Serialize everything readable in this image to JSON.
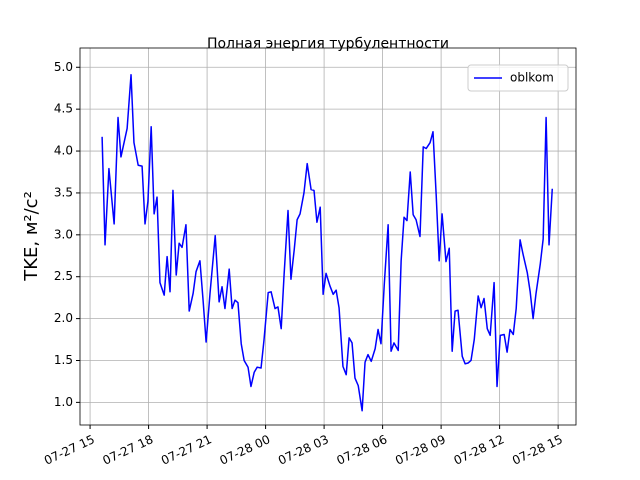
{
  "chart_data": {
    "type": "line",
    "title": "Полная энергия турбулентности",
    "y_label": "TKE, м²/с²",
    "x": [
      "07-27 15:37",
      "07-27 15:46",
      "07-27 15:58",
      "07-27 16:14",
      "07-27 16:26",
      "07-27 16:35",
      "07-27 16:54",
      "07-27 17:06",
      "07-27 17:15",
      "07-27 17:28",
      "07-27 17:40",
      "07-27 17:49",
      "07-27 17:58",
      "07-27 18:08",
      "07-27 18:17",
      "07-27 18:26",
      "07-27 18:35",
      "07-27 18:48",
      "07-27 18:57",
      "07-27 19:06",
      "07-27 19:15",
      "07-27 19:25",
      "07-27 19:34",
      "07-27 19:43",
      "07-27 19:55",
      "07-27 20:05",
      "07-27 20:17",
      "07-27 20:26",
      "07-27 20:38",
      "07-27 20:48",
      "07-27 20:57",
      "07-27 21:09",
      "07-27 21:25",
      "07-27 21:37",
      "07-27 21:46",
      "07-27 21:55",
      "07-27 22:08",
      "07-27 22:17",
      "07-27 22:26",
      "07-27 22:35",
      "07-27 22:45",
      "07-27 22:54",
      "07-27 23:06",
      "07-27 23:15",
      "07-27 23:25",
      "07-27 23:34",
      "07-27 23:46",
      "07-27 23:55",
      "07-28 00:08",
      "07-28 00:17",
      "07-28 00:29",
      "07-28 00:38",
      "07-28 00:48",
      "07-28 00:57",
      "07-28 01:09",
      "07-28 01:18",
      "07-28 01:28",
      "07-28 01:37",
      "07-28 01:46",
      "07-28 01:58",
      "07-28 02:08",
      "07-28 02:20",
      "07-28 02:29",
      "07-28 02:38",
      "07-28 02:48",
      "07-28 02:57",
      "07-28 03:06",
      "07-28 03:18",
      "07-28 03:28",
      "07-28 03:37",
      "07-28 03:46",
      "07-28 03:58",
      "07-28 04:08",
      "07-28 04:17",
      "07-28 04:26",
      "07-28 04:35",
      "07-28 04:45",
      "07-28 04:57",
      "07-28 05:06",
      "07-28 05:15",
      "07-28 05:25",
      "07-28 05:37",
      "07-28 05:46",
      "07-28 05:55",
      "07-28 06:05",
      "07-28 06:17",
      "07-28 06:26",
      "07-28 06:35",
      "07-28 06:48",
      "07-28 06:57",
      "07-28 07:06",
      "07-28 07:15",
      "07-28 07:25",
      "07-28 07:34",
      "07-28 07:43",
      "07-28 07:55",
      "07-28 08:05",
      "07-28 08:14",
      "07-28 08:26",
      "07-28 08:35",
      "07-28 08:45",
      "07-28 08:54",
      "07-28 09:03",
      "07-28 09:15",
      "07-28 09:25",
      "07-28 09:34",
      "07-28 09:43",
      "07-28 09:52",
      "07-28 10:05",
      "07-28 10:14",
      "07-28 10:23",
      "07-28 10:32",
      "07-28 10:42",
      "07-28 10:54",
      "07-28 11:03",
      "07-28 11:12",
      "07-28 11:22",
      "07-28 11:31",
      "07-28 11:43",
      "07-28 11:52",
      "07-28 12:02",
      "07-28 12:14",
      "07-28 12:23",
      "07-28 12:32",
      "07-28 12:42",
      "07-28 12:51",
      "07-28 13:03",
      "07-28 13:12",
      "07-28 13:25",
      "07-28 13:34",
      "07-28 13:43",
      "07-28 13:52",
      "07-28 14:05",
      "07-28 14:14",
      "07-28 14:23",
      "07-28 14:32",
      "07-28 14:42"
    ],
    "series": [
      {
        "name": "oblkom",
        "color": "#0000ff",
        "values": [
          4.17,
          2.88,
          3.79,
          3.13,
          4.4,
          3.93,
          4.27,
          4.91,
          4.1,
          3.83,
          3.82,
          3.13,
          3.4,
          4.29,
          3.25,
          3.45,
          2.43,
          2.28,
          2.74,
          2.32,
          3.53,
          2.52,
          2.9,
          2.85,
          3.12,
          2.09,
          2.3,
          2.56,
          2.69,
          2.2,
          1.72,
          2.3,
          2.99,
          2.2,
          2.38,
          2.12,
          2.59,
          2.12,
          2.22,
          2.19,
          1.7,
          1.5,
          1.42,
          1.19,
          1.36,
          1.42,
          1.41,
          1.74,
          2.31,
          2.32,
          2.12,
          2.14,
          1.88,
          2.53,
          3.29,
          2.47,
          2.82,
          3.18,
          3.25,
          3.5,
          3.85,
          3.54,
          3.53,
          3.15,
          3.33,
          2.29,
          2.54,
          2.39,
          2.29,
          2.34,
          2.13,
          1.43,
          1.33,
          1.77,
          1.71,
          1.29,
          1.2,
          0.9,
          1.48,
          1.57,
          1.49,
          1.64,
          1.87,
          1.7,
          2.4,
          3.12,
          1.61,
          1.71,
          1.62,
          2.69,
          3.21,
          3.17,
          3.75,
          3.24,
          3.18,
          2.98,
          4.05,
          4.03,
          4.1,
          4.23,
          3.46,
          2.69,
          3.25,
          2.68,
          2.84,
          1.61,
          2.09,
          2.1,
          1.55,
          1.46,
          1.47,
          1.5,
          1.75,
          2.27,
          2.13,
          2.24,
          1.88,
          1.8,
          2.43,
          1.19,
          1.8,
          1.81,
          1.6,
          1.87,
          1.81,
          2.12,
          2.94,
          2.77,
          2.55,
          2.32,
          2.0,
          2.3,
          2.65,
          2.95,
          4.4,
          2.88,
          3.55
        ]
      }
    ],
    "xlim": [
      "07-27 14:29",
      "07-28 15:55"
    ],
    "xticks": [
      "07-27 15",
      "07-27 18",
      "07-27 21",
      "07-28 00",
      "07-28 03",
      "07-28 06",
      "07-28 09",
      "07-28 12",
      "07-28 15"
    ],
    "ylim": [
      0.73,
      5.23
    ],
    "yticks": [
      1.0,
      1.5,
      2.0,
      2.5,
      3.0,
      3.5,
      4.0,
      4.5,
      5.0
    ],
    "ytick_labels": [
      "1.0",
      "1.5",
      "2.0",
      "2.5",
      "3.0",
      "3.5",
      "4.0",
      "4.5",
      "5.0"
    ],
    "grid": true,
    "legend": "upper right"
  }
}
